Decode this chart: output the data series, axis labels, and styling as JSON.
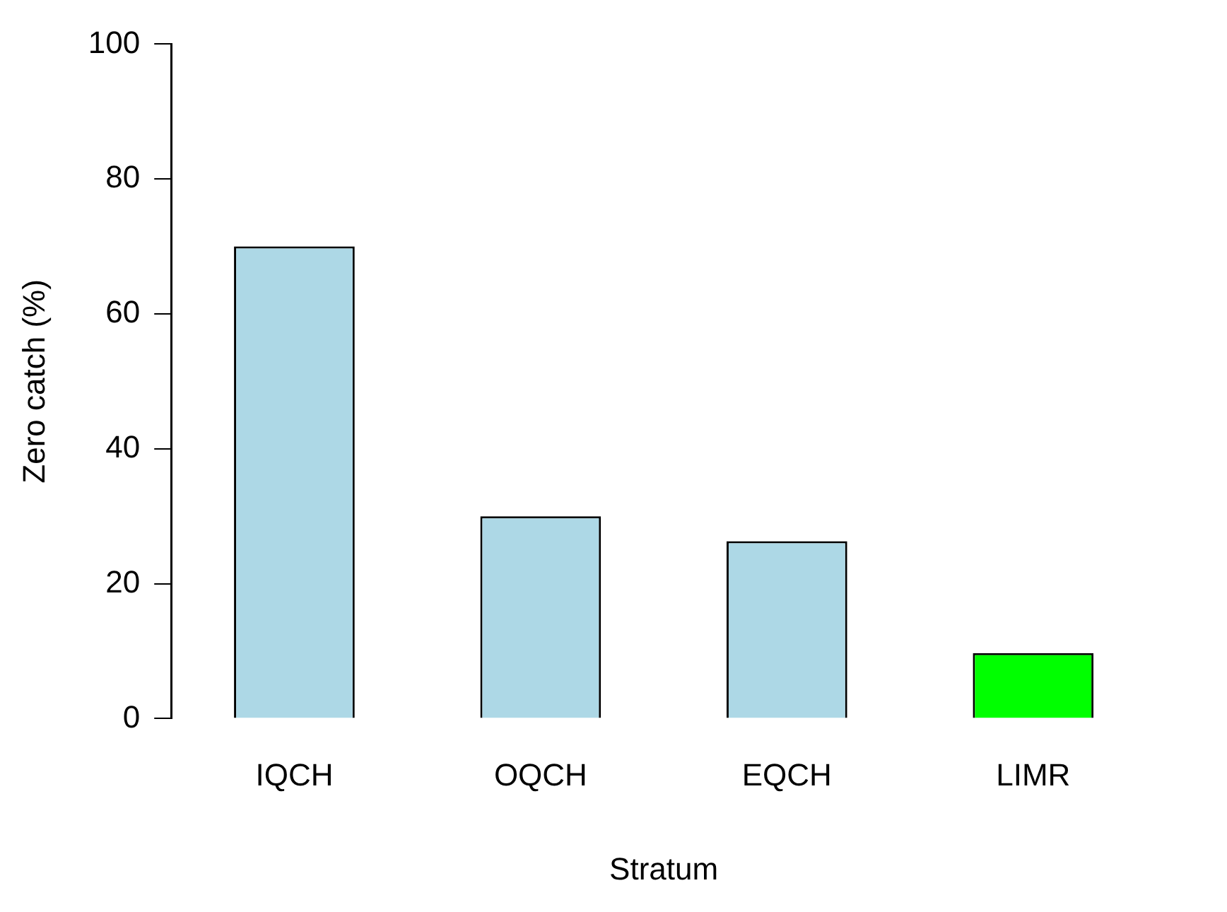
{
  "chart_data": {
    "type": "bar",
    "xlabel": "Stratum",
    "ylabel": "Zero catch (%)",
    "categories": [
      "IQCH",
      "OQCH",
      "EQCH",
      "LIMR"
    ],
    "values": [
      70,
      30,
      26.3,
      9.7
    ],
    "colors": [
      "#add8e6",
      "#add8e6",
      "#add8e6",
      "#00ff00"
    ],
    "ylim": [
      0,
      100
    ],
    "yticks": [
      0,
      20,
      40,
      60,
      80,
      100
    ],
    "grid": false,
    "legend": false
  }
}
